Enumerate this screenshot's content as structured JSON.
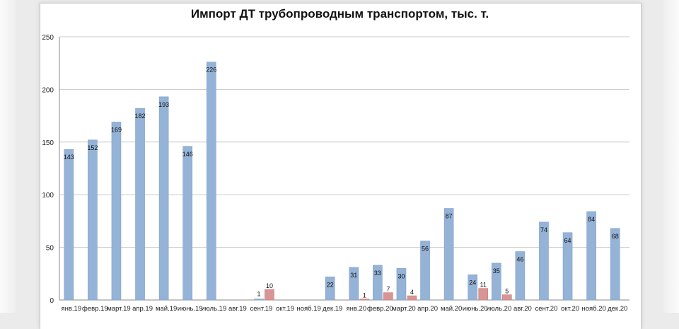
{
  "chart_data": {
    "type": "bar",
    "title": "Импорт ДТ трубопроводным транспортом, тыс. т.",
    "xlabel": "",
    "ylabel": "",
    "ylim": [
      0,
      250
    ],
    "yticks": [
      0,
      50,
      100,
      150,
      200,
      250
    ],
    "grid": true,
    "categories": [
      "янв.19",
      "февр.19",
      "март.19",
      "апр.19",
      "май.19",
      "июнь.19",
      "июль.19",
      "авг.19",
      "сент.19",
      "окт.19",
      "нояб.19",
      "дек.19",
      "янв.20",
      "февр.20",
      "март.20",
      "апр.20",
      "май.20",
      "июнь.20",
      "июль.20",
      "авг.20",
      "сент.20",
      "окт.20",
      "нояб.20",
      "дек.20"
    ],
    "series": [
      {
        "color": "#95b3d7",
        "values": [
          143,
          152,
          169,
          182,
          193,
          146,
          226,
          0,
          1,
          0,
          0,
          22,
          31,
          33,
          30,
          56,
          87,
          24,
          35,
          46,
          74,
          64,
          84,
          68
        ],
        "labels": [
          "143",
          "152",
          "169",
          "182",
          "193",
          "146",
          "226",
          "",
          "1",
          "",
          "",
          "22",
          "31",
          "33",
          "30",
          "56",
          "87",
          "24",
          "35",
          "46",
          "74",
          "64",
          "84",
          "68"
        ]
      },
      {
        "color": "#d99594",
        "values": [
          0,
          0,
          0,
          0,
          0,
          0,
          0,
          0,
          10,
          0,
          0,
          0,
          1,
          7,
          4,
          0,
          0,
          11,
          5,
          0,
          0,
          0,
          0,
          0
        ],
        "labels": [
          "",
          "",
          "",
          "",
          "",
          "",
          "",
          "",
          "10",
          "",
          "",
          "",
          "1",
          "7",
          "4",
          "",
          "",
          "11",
          "5",
          "",
          "",
          "",
          "",
          ""
        ]
      }
    ]
  }
}
